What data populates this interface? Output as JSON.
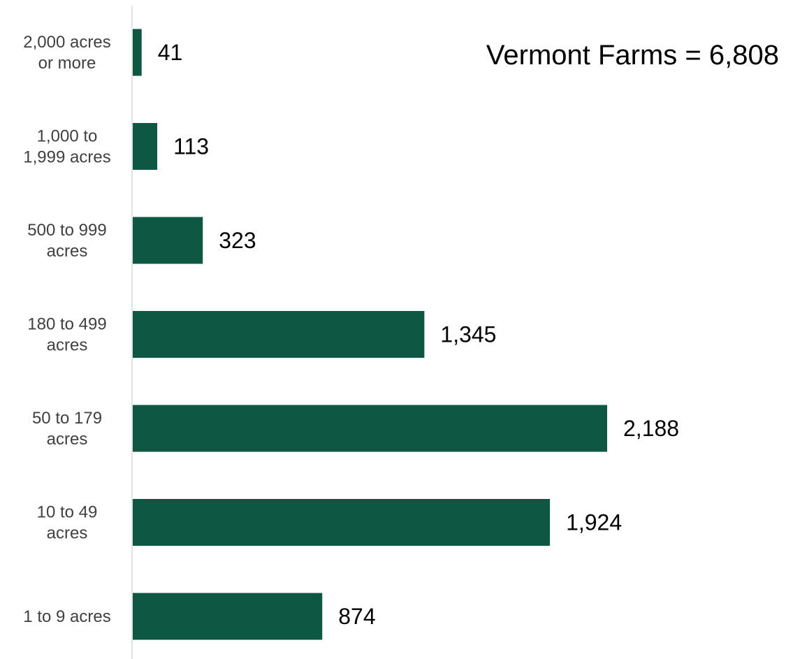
{
  "chart_data": {
    "type": "bar",
    "orientation": "horizontal",
    "title": "",
    "xlabel": "",
    "ylabel": "",
    "annotation": "Vermont Farms = 6,808",
    "categories": [
      [
        "2,000 acres",
        "or more"
      ],
      [
        "1,000 to",
        "1,999 acres"
      ],
      [
        "500 to 999",
        "acres"
      ],
      [
        "180 to 499",
        "acres"
      ],
      [
        "50 to 179",
        "acres"
      ],
      [
        "10 to 49",
        "acres"
      ],
      [
        "1 to 9 acres"
      ]
    ],
    "values": [
      41,
      113,
      323,
      1345,
      2188,
      1924,
      874
    ],
    "value_labels": [
      "41",
      "113",
      "323",
      "1,345",
      "2,188",
      "1,924",
      "874"
    ],
    "xlim": [
      0,
      2300
    ],
    "grid": false,
    "legend": "none",
    "bar_color": "#0d5743",
    "axis_color": "#d9d9d9"
  }
}
